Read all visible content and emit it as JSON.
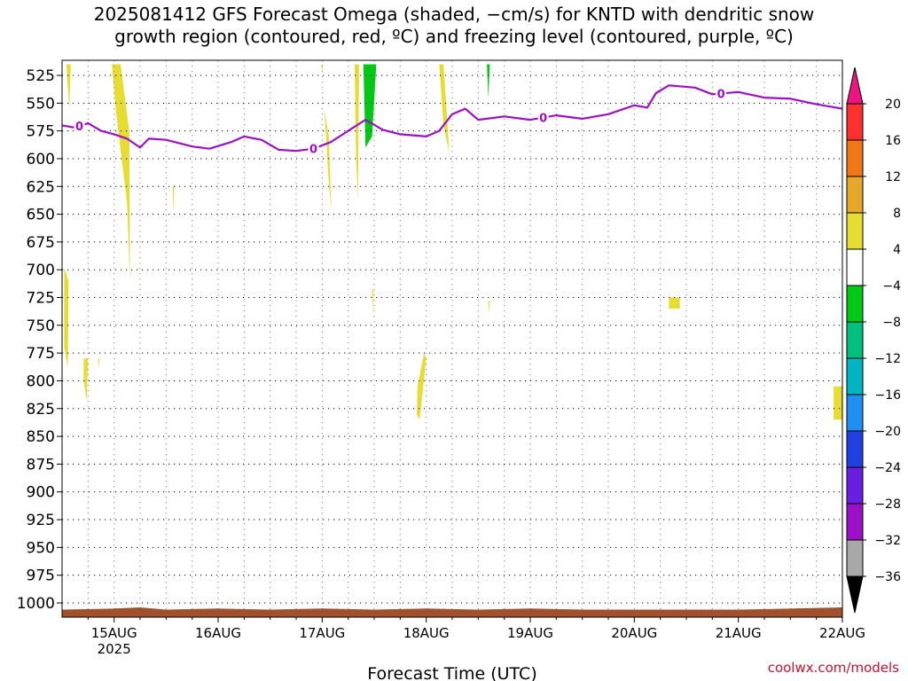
{
  "title_lines": [
    "2025081412 GFS Forecast Omega (shaded, −cm/s) for KNTD with dendritic snow",
    "growth region (contoured, red, ºC) and freezing level (contoured, purple, ºC)"
  ],
  "credit": "coolwx.com/models",
  "chart_data": {
    "type": "heatmap",
    "title": "2025081412 GFS Forecast Omega (shaded, −cm/s) for KNTD with dendritic snow growth region (contoured, red, ºC) and freezing level (contoured, purple, ºC)",
    "xlabel": "Forecast Time (UTC)",
    "ylabel": "",
    "x_range": [
      "2025-08-14 12:00",
      "2025-08-22 00:00"
    ],
    "y_axis": "pressure (hPa), inverted",
    "ylim": [
      1010,
      515
    ],
    "x_ticks": [
      {
        "label": "15AUG",
        "sublabel": "2025",
        "time": "2025-08-15 00:00"
      },
      {
        "label": "16AUG",
        "time": "2025-08-16 00:00"
      },
      {
        "label": "17AUG",
        "time": "2025-08-17 00:00"
      },
      {
        "label": "18AUG",
        "time": "2025-08-18 00:00"
      },
      {
        "label": "19AUG",
        "time": "2025-08-19 00:00"
      },
      {
        "label": "20AUG",
        "time": "2025-08-20 00:00"
      },
      {
        "label": "21AUG",
        "time": "2025-08-21 00:00"
      },
      {
        "label": "22AUG",
        "time": "2025-08-22 00:00"
      }
    ],
    "y_ticks": [
      525,
      550,
      575,
      600,
      625,
      650,
      675,
      700,
      725,
      750,
      775,
      800,
      825,
      850,
      875,
      900,
      925,
      950,
      975,
      1000
    ],
    "grid": true,
    "colorbar": {
      "position": "right",
      "levels": [
        "20",
        "16",
        "12",
        "8",
        "4",
        "−4",
        "−8",
        "−12",
        "−16",
        "−20",
        "−24",
        "−28",
        "−32",
        "−36"
      ],
      "bins": [
        {
          "range": [
            16,
            20
          ],
          "color": "#ff3030"
        },
        {
          "range": [
            12,
            16
          ],
          "color": "#f07818"
        },
        {
          "range": [
            8,
            12
          ],
          "color": "#e4a82a"
        },
        {
          "range": [
            4,
            8
          ],
          "color": "#e6dc32"
        },
        {
          "range": [
            -4,
            4
          ],
          "color": "#ffffff"
        },
        {
          "range": [
            -8,
            -4
          ],
          "color": "#00c814"
        },
        {
          "range": [
            -12,
            -8
          ],
          "color": "#00c080"
        },
        {
          "range": [
            -16,
            -12
          ],
          "color": "#00b4c0"
        },
        {
          "range": [
            -20,
            -16
          ],
          "color": "#2090f0"
        },
        {
          "range": [
            -24,
            -20
          ],
          "color": "#2040e0"
        },
        {
          "range": [
            -28,
            -24
          ],
          "color": "#6a1ee0"
        },
        {
          "range": [
            -32,
            -28
          ],
          "color": "#9c10c8"
        },
        {
          "range": [
            -36,
            -32
          ],
          "color": "#a8a8a8"
        }
      ],
      "top_arrow_color": "#ee1480",
      "bottom_arrow_color": "#000000"
    },
    "freezing_level": {
      "label": "0",
      "color": "#9c10c8",
      "points": [
        [
          "2025-08-14 12:00",
          570
        ],
        [
          "2025-08-14 15:00",
          572
        ],
        [
          "2025-08-14 18:00",
          568
        ],
        [
          "2025-08-14 21:00",
          575
        ],
        [
          "2025-08-15 00:00",
          578
        ],
        [
          "2025-08-15 03:00",
          582
        ],
        [
          "2025-08-15 06:00",
          590
        ],
        [
          "2025-08-15 08:00",
          582
        ],
        [
          "2025-08-15 12:00",
          583
        ],
        [
          "2025-08-15 18:00",
          589
        ],
        [
          "2025-08-15 22:00",
          591
        ],
        [
          "2025-08-16 03:00",
          585
        ],
        [
          "2025-08-16 06:00",
          580
        ],
        [
          "2025-08-16 10:00",
          583
        ],
        [
          "2025-08-16 14:00",
          592
        ],
        [
          "2025-08-16 18:00",
          593
        ],
        [
          "2025-08-16 22:00",
          591
        ],
        [
          "2025-08-17 02:00",
          585
        ],
        [
          "2025-08-17 06:00",
          575
        ],
        [
          "2025-08-17 10:00",
          565
        ],
        [
          "2025-08-17 14:00",
          574
        ],
        [
          "2025-08-17 18:00",
          578
        ],
        [
          "2025-08-18 00:00",
          580
        ],
        [
          "2025-08-18 03:00",
          575
        ],
        [
          "2025-08-18 06:00",
          560
        ],
        [
          "2025-08-18 09:00",
          555
        ],
        [
          "2025-08-18 12:00",
          565
        ],
        [
          "2025-08-18 18:00",
          562
        ],
        [
          "2025-08-19 00:00",
          565
        ],
        [
          "2025-08-19 06:00",
          561
        ],
        [
          "2025-08-19 12:00",
          564
        ],
        [
          "2025-08-19 18:00",
          560
        ],
        [
          "2025-08-20 00:00",
          552
        ],
        [
          "2025-08-20 03:00",
          554
        ],
        [
          "2025-08-20 05:00",
          541
        ],
        [
          "2025-08-20 08:00",
          534
        ],
        [
          "2025-08-20 14:00",
          536
        ],
        [
          "2025-08-20 18:00",
          542
        ],
        [
          "2025-08-21 00:00",
          540
        ],
        [
          "2025-08-21 06:00",
          545
        ],
        [
          "2025-08-21 12:00",
          546
        ],
        [
          "2025-08-21 18:00",
          551
        ],
        [
          "2025-08-22 00:00",
          555
        ]
      ],
      "label_times": [
        "2025-08-14 16:00",
        "2025-08-16 22:00",
        "2025-08-19 03:00",
        "2025-08-20 20:00"
      ]
    },
    "omega_regions": [
      {
        "value": 5,
        "points": [
          [
            "2025-08-14 13:00",
            515
          ],
          [
            "2025-08-14 14:00",
            515
          ],
          [
            "2025-08-14 13:40",
            555
          ]
        ]
      },
      {
        "value": 5,
        "points": [
          [
            "2025-08-14 23:30",
            515
          ],
          [
            "2025-08-15 01:30",
            515
          ],
          [
            "2025-08-15 03:30",
            575
          ],
          [
            "2025-08-15 03:40",
            710
          ],
          [
            "2025-08-15 03:00",
            640
          ],
          [
            "2025-08-15 00:30",
            560
          ]
        ]
      },
      {
        "value": 5,
        "points": [
          [
            "2025-08-15 13:30",
            625
          ],
          [
            "2025-08-15 13:50",
            625
          ],
          [
            "2025-08-15 13:45",
            650
          ]
        ]
      },
      {
        "value": 5,
        "points": [
          [
            "2025-08-14 12:30",
            698
          ],
          [
            "2025-08-14 13:30",
            710
          ],
          [
            "2025-08-14 13:20",
            788
          ],
          [
            "2025-08-14 12:30",
            770
          ]
        ]
      },
      {
        "value": 5,
        "points": [
          [
            "2025-08-14 17:00",
            780
          ],
          [
            "2025-08-14 18:00",
            780
          ],
          [
            "2025-08-14 17:40",
            818
          ],
          [
            "2025-08-14 17:00",
            800
          ]
        ]
      },
      {
        "value": 5,
        "points": [
          [
            "2025-08-14 20:20",
            780
          ],
          [
            "2025-08-14 20:40",
            780
          ],
          [
            "2025-08-14 20:30",
            788
          ]
        ]
      },
      {
        "value": 5,
        "points": [
          [
            "2025-08-16 23:50",
            515
          ],
          [
            "2025-08-17 00:10",
            515
          ],
          [
            "2025-08-17 00:00",
            523
          ]
        ]
      },
      {
        "value": 5,
        "points": [
          [
            "2025-08-17 00:30",
            555
          ],
          [
            "2025-08-17 01:30",
            580
          ],
          [
            "2025-08-17 02:10",
            648
          ],
          [
            "2025-08-17 01:30",
            620
          ]
        ]
      },
      {
        "value": 5,
        "points": [
          [
            "2025-08-17 07:30",
            515
          ],
          [
            "2025-08-17 08:30",
            515
          ],
          [
            "2025-08-17 08:15",
            635
          ],
          [
            "2025-08-17 07:50",
            600
          ]
        ]
      },
      {
        "value": -6,
        "points": [
          [
            "2025-08-17 09:30",
            515
          ],
          [
            "2025-08-17 12:30",
            515
          ],
          [
            "2025-08-17 11:30",
            580
          ],
          [
            "2025-08-17 10:00",
            590
          ]
        ]
      },
      {
        "value": 5,
        "points": [
          [
            "2025-08-18 03:00",
            515
          ],
          [
            "2025-08-18 04:00",
            515
          ],
          [
            "2025-08-18 05:20",
            595
          ],
          [
            "2025-08-18 04:00",
            570
          ]
        ]
      },
      {
        "value": -6,
        "points": [
          [
            "2025-08-18 14:00",
            515
          ],
          [
            "2025-08-18 14:40",
            515
          ],
          [
            "2025-08-18 14:20",
            545
          ]
        ]
      },
      {
        "value": 5,
        "points": [
          [
            "2025-08-17 11:30",
            718
          ],
          [
            "2025-08-17 11:50",
            718
          ],
          [
            "2025-08-17 11:45",
            740
          ]
        ]
      },
      {
        "value": 5,
        "points": [
          [
            "2025-08-18 14:20",
            728
          ],
          [
            "2025-08-18 14:40",
            728
          ],
          [
            "2025-08-18 14:30",
            740
          ]
        ]
      },
      {
        "value": 5,
        "points": [
          [
            "2025-08-17 22:00",
            805
          ],
          [
            "2025-08-17 23:30",
            775
          ],
          [
            "2025-08-18 00:00",
            780
          ],
          [
            "2025-08-17 22:30",
            835
          ],
          [
            "2025-08-17 21:50",
            830
          ]
        ]
      },
      {
        "value": 5,
        "points": [
          [
            "2025-08-20 08:00",
            725
          ],
          [
            "2025-08-20 10:30",
            725
          ],
          [
            "2025-08-20 10:30",
            735
          ],
          [
            "2025-08-20 08:00",
            735
          ]
        ]
      },
      {
        "value": 5,
        "points": [
          [
            "2025-08-21 22:00",
            805
          ],
          [
            "2025-08-22 00:00",
            805
          ],
          [
            "2025-08-22 00:00",
            835
          ],
          [
            "2025-08-21 22:00",
            835
          ]
        ]
      }
    ],
    "surface": {
      "color": "#a0522d",
      "pressure_points": [
        [
          "2025-08-14 12:00",
          1006
        ],
        [
          "2025-08-15 00:00",
          1005
        ],
        [
          "2025-08-15 06:00",
          1004
        ],
        [
          "2025-08-15 12:00",
          1006
        ],
        [
          "2025-08-16 00:00",
          1005
        ],
        [
          "2025-08-16 12:00",
          1006
        ],
        [
          "2025-08-17 00:00",
          1005
        ],
        [
          "2025-08-17 12:00",
          1006
        ],
        [
          "2025-08-18 00:00",
          1005
        ],
        [
          "2025-08-18 12:00",
          1006
        ],
        [
          "2025-08-19 00:00",
          1005
        ],
        [
          "2025-08-19 12:00",
          1006
        ],
        [
          "2025-08-20 00:00",
          1006
        ],
        [
          "2025-08-21 00:00",
          1006
        ],
        [
          "2025-08-21 12:00",
          1005
        ],
        [
          "2025-08-22 00:00",
          1004
        ]
      ]
    }
  }
}
